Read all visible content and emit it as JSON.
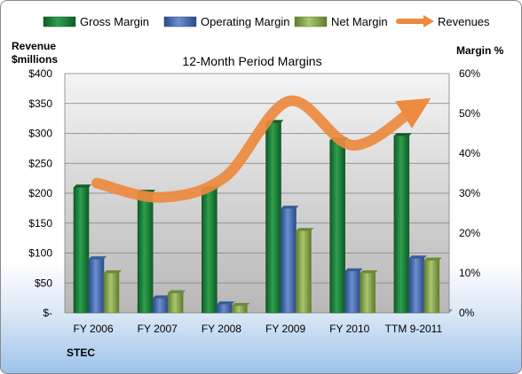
{
  "chart_data": {
    "type": "bar",
    "title": "12-Month Period Margins",
    "ylabel_left": [
      "Revenue",
      "$millions"
    ],
    "ylabel_right": "Margin %",
    "footer": "STEC",
    "categories": [
      "FY 2006",
      "FY 2007",
      "FY 2008",
      "FY 2009",
      "FY 2010",
      "TTM 9-2011"
    ],
    "left_axis": {
      "min": 0,
      "max": 400,
      "step": 50,
      "ticks": [
        "$-",
        "$50",
        "$100",
        "$150",
        "$200",
        "$250",
        "$300",
        "$350",
        "$400"
      ]
    },
    "right_axis": {
      "min": 0,
      "max": 60,
      "step": 10,
      "ticks": [
        "0%",
        "10%",
        "20%",
        "30%",
        "40%",
        "50%",
        "60%"
      ]
    },
    "grid": true,
    "legend_position": "top",
    "series": [
      {
        "name": "Gross Margin",
        "kind": "bar",
        "color": "#1f8a3e",
        "values": [
          31.5,
          30.2,
          31.0,
          47.7,
          43.3,
          44.4
        ]
      },
      {
        "name": "Operating Margin",
        "kind": "bar",
        "color": "#4a6fb0",
        "values": [
          13.5,
          3.7,
          2.2,
          26.2,
          10.5,
          13.7
        ]
      },
      {
        "name": "Net Margin",
        "kind": "bar",
        "color": "#8fae52",
        "values": [
          10.0,
          5.0,
          1.8,
          20.6,
          10.0,
          13.2
        ]
      },
      {
        "name": "Revenues",
        "kind": "line",
        "color": "#ed8a3f",
        "values": [
          217,
          193,
          227,
          354,
          280,
          345
        ]
      }
    ]
  }
}
